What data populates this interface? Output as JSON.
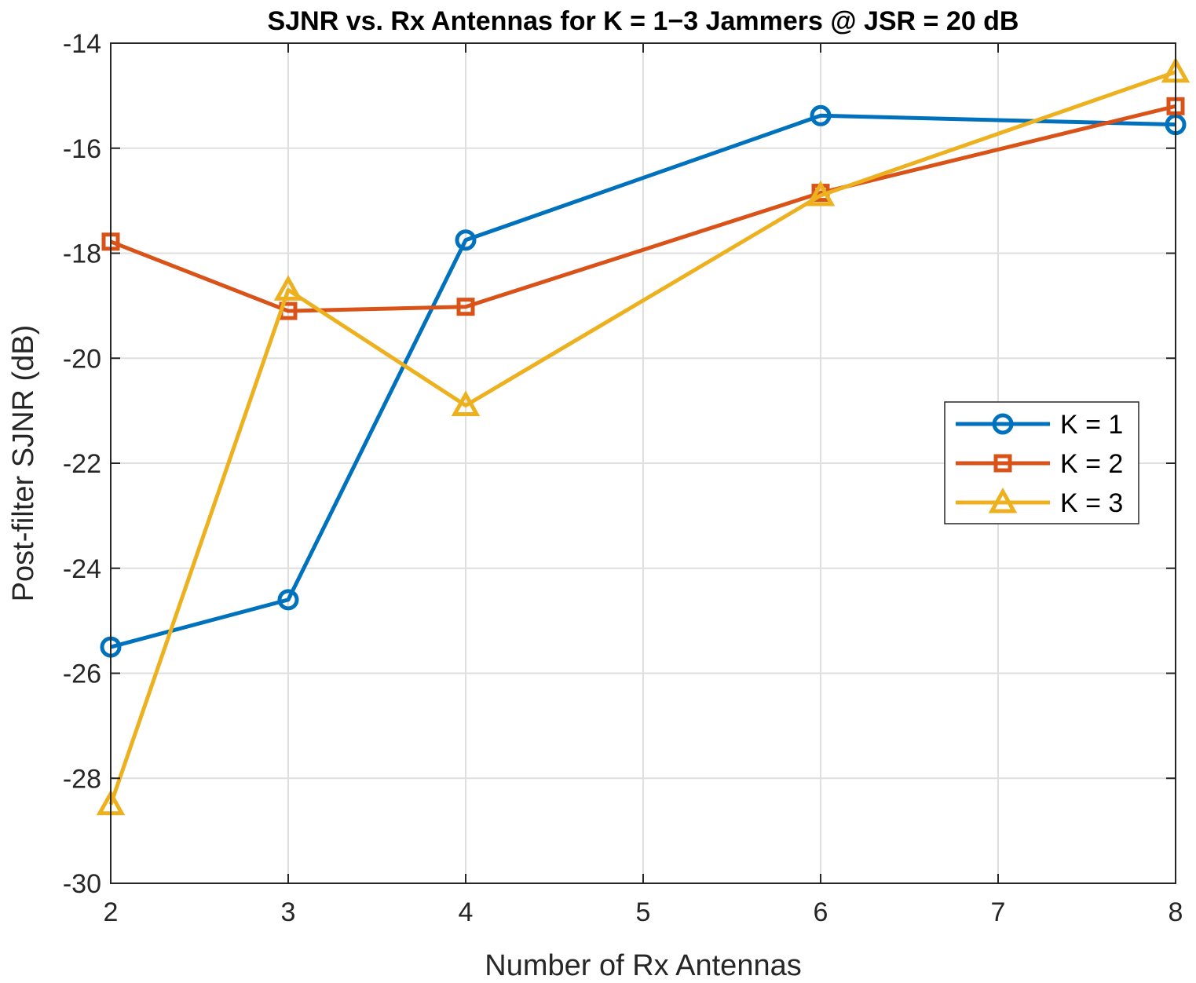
{
  "chart_data": {
    "type": "line",
    "title": "SJNR vs. Rx Antennas for K = 1−3 Jammers @ JSR = 20 dB",
    "xlabel": "Number of Rx Antennas",
    "ylabel": "Post-filter SJNR (dB)",
    "xlim": [
      2,
      8
    ],
    "ylim": [
      -30,
      -14
    ],
    "xticks": [
      2,
      3,
      4,
      5,
      6,
      7,
      8
    ],
    "yticks": [
      -30,
      -28,
      -26,
      -24,
      -22,
      -20,
      -18,
      -16,
      -14
    ],
    "grid": true,
    "legend_position": "right",
    "x": [
      2,
      3,
      4,
      6,
      8
    ],
    "series": [
      {
        "name": "K = 1",
        "color": "#0072BD",
        "marker": "circle",
        "values": [
          -25.5,
          -24.6,
          -17.75,
          -15.38,
          -15.55
        ]
      },
      {
        "name": "K = 2",
        "color": "#D95319",
        "marker": "square",
        "values": [
          -17.78,
          -19.1,
          -19.02,
          -16.85,
          -15.2
        ]
      },
      {
        "name": "K = 3",
        "color": "#EDB120",
        "marker": "triangle",
        "values": [
          -28.5,
          -18.7,
          -20.9,
          -16.9,
          -14.55
        ]
      }
    ]
  }
}
